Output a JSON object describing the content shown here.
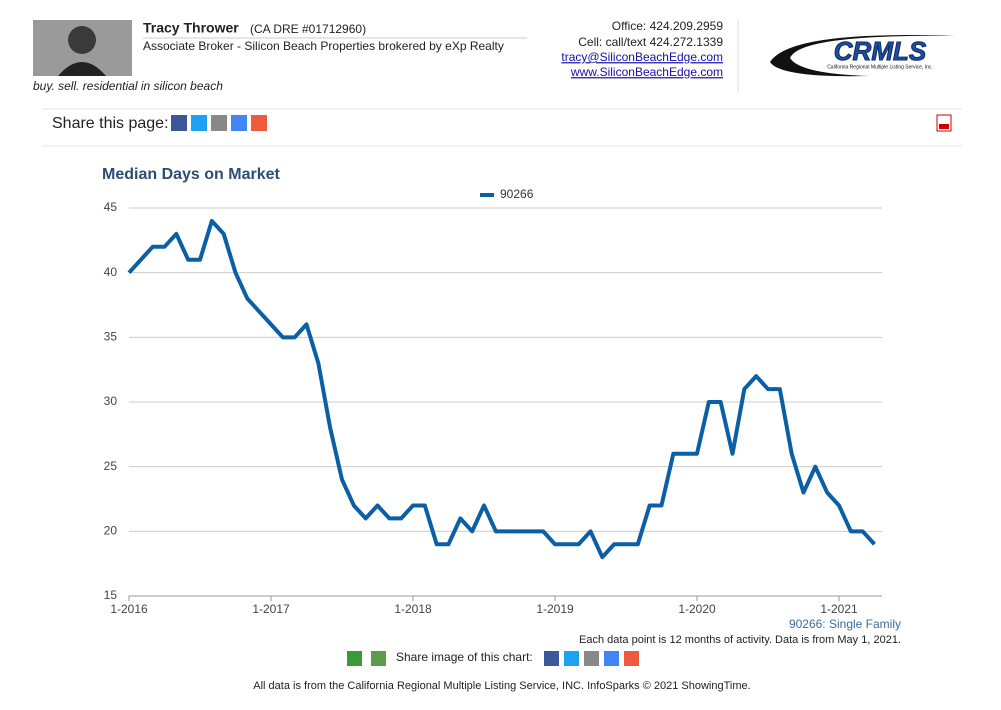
{
  "header": {
    "name": "Tracy Thrower",
    "license": "(CA DRE #01712960)",
    "role": "Associate Broker - Silicon Beach Properties brokered by eXp Realty",
    "tagline": "buy. sell. residential in silicon beach",
    "office": "Office: 424.209.2959",
    "cell": "Cell: call/text 424.272.1339",
    "email": "tracy@SiliconBeachEdge.com",
    "website": "www.SiliconBeachEdge.com"
  },
  "logo": {
    "text": "CRMLS",
    "subtitle": "California Regional Multiple Listing Service, Inc."
  },
  "share": {
    "label": "Share this page:"
  },
  "chart_data": {
    "type": "line",
    "title": "Median Days on Market",
    "categories": [
      "1-2016",
      null,
      null,
      null,
      null,
      null,
      null,
      null,
      null,
      null,
      null,
      null,
      "1-2017",
      null,
      null,
      null,
      null,
      null,
      null,
      null,
      null,
      null,
      null,
      null,
      "1-2018",
      null,
      null,
      null,
      null,
      null,
      null,
      null,
      null,
      null,
      null,
      null,
      "1-2019",
      null,
      null,
      null,
      null,
      null,
      null,
      null,
      null,
      null,
      null,
      null,
      "1-2020",
      null,
      null,
      null,
      null,
      null,
      null,
      null,
      null,
      null,
      null,
      null,
      "1-2021",
      null,
      null,
      null
    ],
    "series": [
      {
        "name": "90266",
        "color": "#0b5fa5",
        "values": [
          40,
          41,
          42,
          42,
          43,
          41,
          41,
          44,
          43,
          40,
          38,
          37,
          36,
          35,
          35,
          36,
          33,
          28,
          24,
          22,
          21,
          22,
          21,
          21,
          22,
          22,
          19,
          19,
          21,
          20,
          22,
          20,
          20,
          20,
          20,
          20,
          19,
          19,
          19,
          20,
          18,
          19,
          19,
          19,
          22,
          22,
          26,
          26,
          26,
          30,
          30,
          26,
          31,
          32,
          31,
          31,
          26,
          23,
          25,
          23,
          22,
          20,
          20,
          19
        ]
      }
    ],
    "ylim": [
      15,
      45
    ],
    "yticks": [
      15,
      20,
      25,
      30,
      35,
      40,
      45
    ],
    "grid": true,
    "series_note": "90266: Single Family",
    "source_note": "Each data point is 12 months of activity. Data is from May 1, 2021."
  },
  "footer": {
    "share_image_label": "Share image of this chart:",
    "disclaimer": "All data is from the California Regional Multiple Listing Service, INC. InfoSparks © 2021 ShowingTime."
  }
}
